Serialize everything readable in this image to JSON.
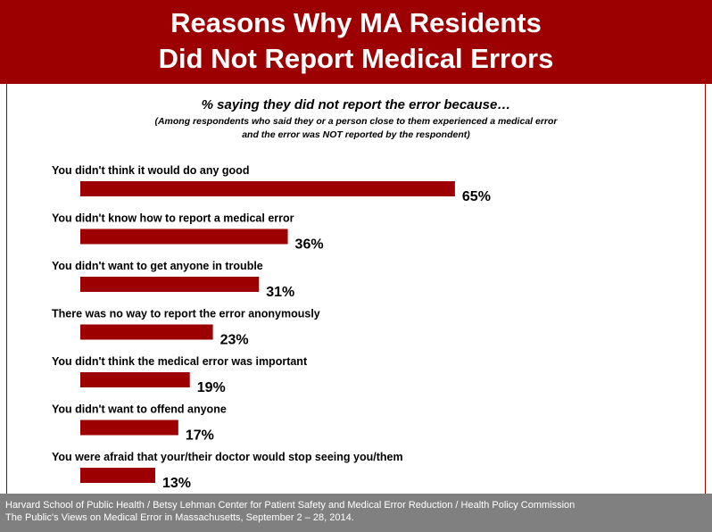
{
  "title": {
    "line1": "Reasons Why MA Residents",
    "line2": "Did Not Report Medical Errors"
  },
  "subtitle": "% saying they did not report the error because…",
  "note": {
    "line1": "(Among respondents who said they or a person close to them experienced a medical error",
    "line2": "and the error was NOT reported by the respondent)"
  },
  "footer": {
    "line1": "Harvard School of Public Health / Betsy Lehman Center for Patient Safety and Medical Error Reduction / Health Policy Commission",
    "line2": "The Public's Views on Medical Error in Massachusetts, September 2 – 28, 2014."
  },
  "colors": {
    "title_band": "#9c0000",
    "bar": "#9c0000",
    "footer_band": "#808080"
  },
  "chart_data": {
    "type": "bar",
    "orientation": "horizontal",
    "categories": [
      "You didn't think it would do any good",
      "You didn't know how to report a medical error",
      "You didn't want to get anyone in trouble",
      "There was no way to report the error anonymously",
      "You didn't think the medical error was important",
      "You didn't want to offend anyone",
      "You were afraid that your/their doctor would stop seeing you/them"
    ],
    "values": [
      65,
      36,
      31,
      23,
      19,
      17,
      13
    ],
    "value_labels": [
      "65%",
      "36%",
      "31%",
      "23%",
      "19%",
      "17%",
      "13%"
    ],
    "unit": "%",
    "xlim": [
      0,
      100
    ],
    "grid": false,
    "legend": "none"
  }
}
